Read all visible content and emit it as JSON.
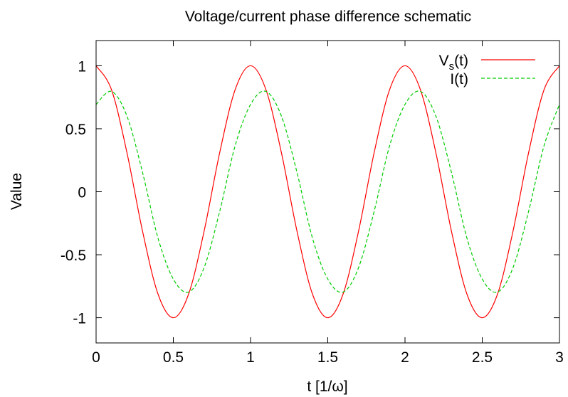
{
  "chart_data": {
    "type": "line",
    "title": "Voltage/current phase difference schematic",
    "xlabel": "t [1/ω]",
    "ylabel": "Value",
    "xlim": [
      0,
      3
    ],
    "ylim": [
      -1.2,
      1.2
    ],
    "grid": false,
    "legend_position": "top-right",
    "xticks": [
      {
        "value": 0,
        "label": "0"
      },
      {
        "value": 0.5,
        "label": "0.5"
      },
      {
        "value": 1,
        "label": "1"
      },
      {
        "value": 1.5,
        "label": "1.5"
      },
      {
        "value": 2,
        "label": "2"
      },
      {
        "value": 2.5,
        "label": "2.5"
      },
      {
        "value": 3,
        "label": "3"
      }
    ],
    "yticks": [
      {
        "value": 1,
        "label": "1"
      },
      {
        "value": 0.5,
        "label": "0.5"
      },
      {
        "value": 0,
        "label": "0"
      },
      {
        "value": -0.5,
        "label": "-0.5"
      },
      {
        "value": -1,
        "label": "-1"
      }
    ],
    "x": [
      0,
      0.1,
      0.2,
      0.3,
      0.4,
      0.5,
      0.6,
      0.7,
      0.8,
      0.9,
      1.0,
      1.1,
      1.2,
      1.3,
      1.4,
      1.5,
      1.6,
      1.7,
      1.8,
      1.9,
      2.0,
      2.1,
      2.2,
      2.3,
      2.4,
      2.5,
      2.6,
      2.7,
      2.8,
      2.9,
      3.0
    ],
    "series": [
      {
        "name": "V",
        "name_sub": "s",
        "name_suffix": "(t)",
        "color": "#ff0000",
        "dash": "solid",
        "values": [
          1.0,
          0.809,
          0.309,
          -0.309,
          -0.809,
          -1.0,
          -0.809,
          -0.309,
          0.309,
          0.809,
          1.0,
          0.809,
          0.309,
          -0.309,
          -0.809,
          -1.0,
          -0.809,
          -0.309,
          0.309,
          0.809,
          1.0,
          0.809,
          0.309,
          -0.309,
          -0.809,
          -1.0,
          -0.809,
          -0.309,
          0.309,
          0.809,
          1.0
        ]
      },
      {
        "name": "I(t)",
        "color": "#00cc00",
        "dash": "dashed",
        "values": [
          0.693,
          0.796,
          0.6,
          0.157,
          -0.364,
          -0.693,
          -0.796,
          -0.6,
          -0.157,
          0.364,
          0.693,
          0.796,
          0.6,
          0.157,
          -0.364,
          -0.693,
          -0.796,
          -0.6,
          -0.157,
          0.364,
          0.693,
          0.796,
          0.6,
          0.157,
          -0.364,
          -0.693,
          -0.796,
          -0.6,
          -0.157,
          0.364,
          0.693
        ]
      }
    ]
  }
}
